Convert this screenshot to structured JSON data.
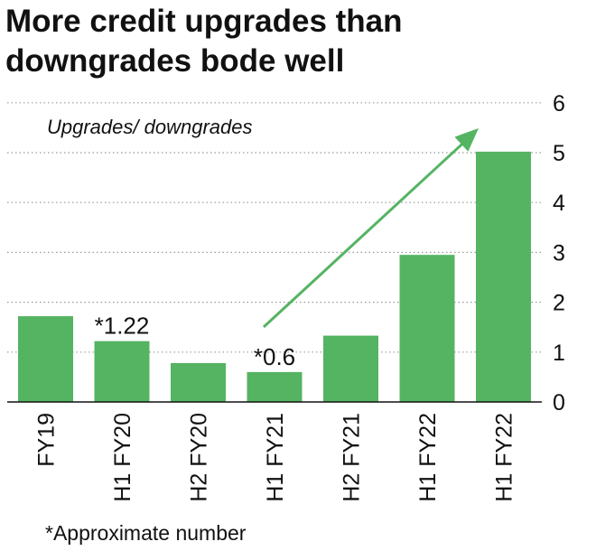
{
  "title": {
    "line1": "More credit upgrades than",
    "line2": "downgrades bode well"
  },
  "footnote": "*Approximate number",
  "colors": {
    "bar": "#55b462",
    "arrow": "#55b462",
    "grid": "#9a9a9a",
    "axis": "#111111"
  },
  "chart_data": {
    "type": "bar",
    "ylabel": "Upgrades/ downgrades",
    "categories": [
      "FY19",
      "H1 FY20",
      "H2 FY20",
      "H1 FY21",
      "H2 FY21",
      "H1 FY22",
      "H1 FY22"
    ],
    "values": [
      1.72,
      1.22,
      0.78,
      0.6,
      1.33,
      2.95,
      5.02
    ],
    "data_labels": [
      "",
      "*1.22",
      "",
      "*0.6",
      "",
      "",
      ""
    ],
    "ylim": [
      0,
      6
    ],
    "yticks": [
      "0",
      "1",
      "2",
      "3",
      "4",
      "5",
      "6"
    ],
    "grid": "dotted horizontal",
    "annotation": "upward trend arrow from H1 FY21 to H1 FY22"
  }
}
